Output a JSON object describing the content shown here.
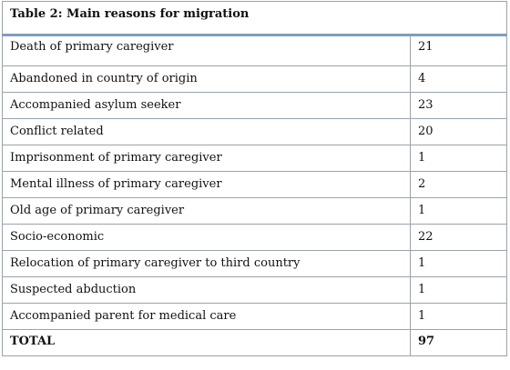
{
  "table": {
    "title": "Table 2: Main reasons for migration",
    "rows": [
      {
        "reason": "Death of primary caregiver",
        "count": "21"
      },
      {
        "reason": "Abandoned in country of origin",
        "count": "4"
      },
      {
        "reason": "Accompanied asylum seeker",
        "count": "23"
      },
      {
        "reason": "Conflict related",
        "count": "20"
      },
      {
        "reason": "Imprisonment of primary caregiver",
        "count": "1"
      },
      {
        "reason": "Mental illness of primary caregiver",
        "count": "2"
      },
      {
        "reason": "Old age of primary caregiver",
        "count": "1"
      },
      {
        "reason": "Socio-economic",
        "count": "22"
      },
      {
        "reason": "Relocation of primary caregiver to third country",
        "count": "1"
      },
      {
        "reason": "Suspected abduction",
        "count": "1"
      },
      {
        "reason": "Accompanied parent for medical care",
        "count": "1"
      }
    ],
    "total": {
      "label": "TOTAL",
      "count": "97"
    }
  }
}
